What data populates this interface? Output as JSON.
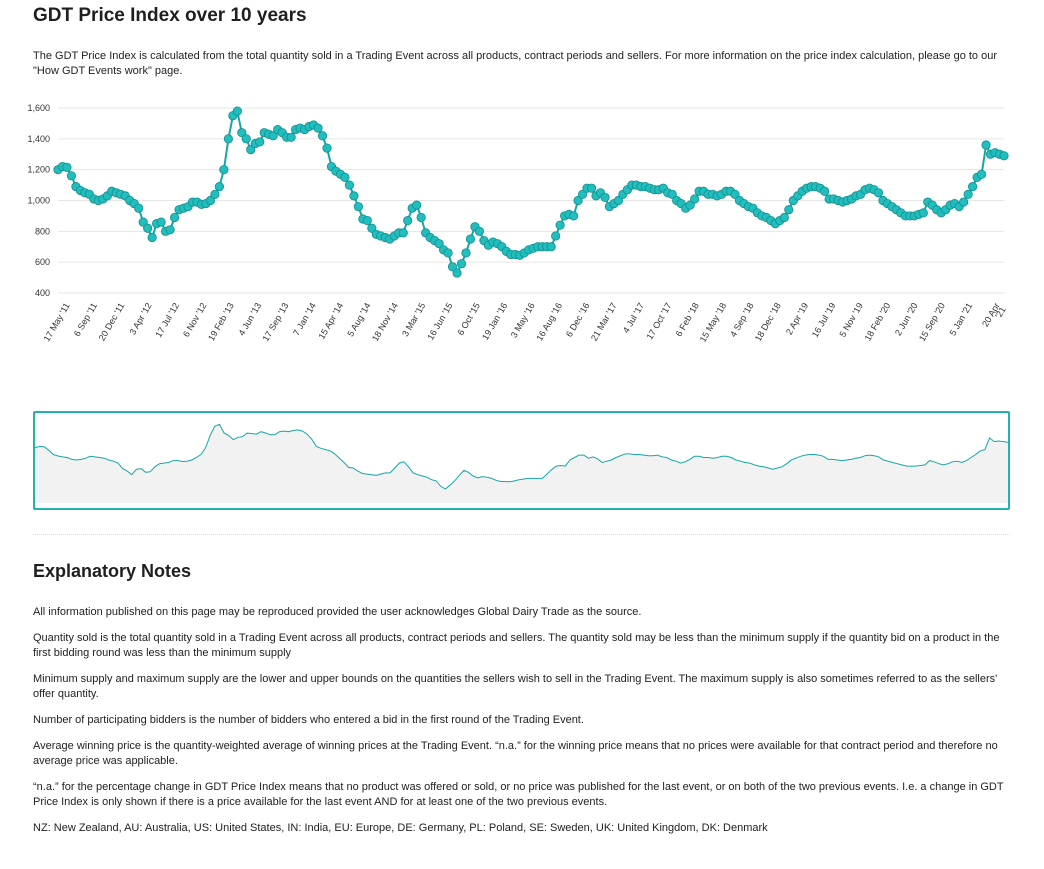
{
  "page": {
    "title": "GDT Price Index over 10 years",
    "intro": "The GDT Price Index is calculated from the total quantity sold in a Trading Event across all products, contract periods and sellers. For more information on the price index calculation, please go to our \"How GDT Events work\" page."
  },
  "chart_data": {
    "type": "line",
    "markers": true,
    "grid": true,
    "ylim": [
      400,
      1600
    ],
    "yticks": [
      "1,600",
      "1,400",
      "1,200",
      "1,000",
      "800",
      "600",
      "400"
    ],
    "yticks_values": [
      1600,
      1400,
      1200,
      1000,
      800,
      600,
      400
    ],
    "xticks": [
      "17 May '11",
      "6 Sep '11",
      "20 Dec '11",
      "3 Apr '12",
      "17 Jul '12",
      "6 Nov '12",
      "19 Feb '13",
      "4 Jun '13",
      "17 Sep '13",
      "7 Jan '14",
      "15 Apr '14",
      "5 Aug '14",
      "18 Nov '14",
      "3 Mar '15",
      "16 Jun '15",
      "6 Oct '15",
      "19 Jan '16",
      "3 May '16",
      "16 Aug '16",
      "6 Dec '16",
      "21 Mar '17",
      "4 Jul '17",
      "17 Oct '17",
      "6 Feb '18",
      "15 May '18",
      "4 Sep '18",
      "18 Dec '18",
      "2 Apr '19",
      "16 Jul '19",
      "5 Nov '19",
      "18 Feb '20",
      "2 Jun '20",
      "15 Sep '20",
      "5 Jan '21",
      "20 Apr '21"
    ],
    "values": [
      1200,
      1220,
      1215,
      1160,
      1090,
      1065,
      1050,
      1040,
      1010,
      1000,
      1010,
      1030,
      1060,
      1050,
      1040,
      1030,
      1000,
      980,
      950,
      860,
      820,
      760,
      850,
      860,
      800,
      810,
      890,
      940,
      950,
      960,
      990,
      990,
      975,
      980,
      1000,
      1040,
      1090,
      1200,
      1400,
      1550,
      1580,
      1440,
      1400,
      1330,
      1370,
      1380,
      1440,
      1430,
      1420,
      1460,
      1440,
      1410,
      1410,
      1460,
      1470,
      1460,
      1480,
      1490,
      1470,
      1420,
      1340,
      1220,
      1190,
      1170,
      1150,
      1100,
      1030,
      960,
      880,
      870,
      820,
      780,
      770,
      760,
      750,
      770,
      790,
      790,
      870,
      950,
      970,
      890,
      790,
      760,
      740,
      720,
      680,
      660,
      570,
      530,
      590,
      660,
      750,
      830,
      800,
      740,
      710,
      730,
      720,
      700,
      670,
      650,
      650,
      645,
      660,
      680,
      690,
      700,
      700,
      700,
      700,
      770,
      840,
      900,
      910,
      900,
      1000,
      1040,
      1080,
      1080,
      1030,
      1050,
      1020,
      960,
      980,
      1000,
      1040,
      1070,
      1100,
      1100,
      1090,
      1090,
      1080,
      1070,
      1070,
      1080,
      1050,
      1040,
      1000,
      980,
      950,
      970,
      1010,
      1060,
      1060,
      1040,
      1040,
      1030,
      1040,
      1060,
      1060,
      1040,
      1000,
      980,
      960,
      950,
      920,
      900,
      890,
      870,
      850,
      870,
      890,
      940,
      1000,
      1030,
      1060,
      1080,
      1090,
      1090,
      1080,
      1060,
      1010,
      1010,
      1000,
      990,
      1000,
      1010,
      1030,
      1040,
      1070,
      1080,
      1070,
      1050,
      1000,
      980,
      960,
      940,
      920,
      900,
      900,
      900,
      910,
      920,
      990,
      970,
      940,
      920,
      940,
      970,
      980,
      960,
      990,
      1040,
      1090,
      1150,
      1170,
      1360,
      1300,
      1310,
      1300,
      1290
    ]
  },
  "navigator": {
    "label": "range-navigator"
  },
  "notes": {
    "title": "Explanatory Notes",
    "items": [
      "All information published on this page may be reproduced provided the user acknowledges Global Dairy Trade as the source.",
      "Quantity sold is the total quantity sold in a Trading Event across all products, contract periods and sellers. The quantity sold may be less than the minimum supply if the quantity bid on a product in the first bidding round was less than the minimum supply",
      "Minimum supply and maximum supply are the lower and upper bounds on the quantities the sellers wish to sell in the Trading Event. The maximum supply is also sometimes referred to as the sellers' offer quantity.",
      "Number of participating bidders is the number of bidders who entered a bid in the first round of the Trading Event.",
      "Average winning price is the quantity-weighted average of winning prices at the Trading Event.  “n.a.” for the winning price means that no prices were available for that contract period and therefore no average price was applicable.",
      "“n.a.” for the percentage change in GDT Price Index means that no product was offered or sold, or no price was published for the last event, or on both of the two previous events.  I.e. a change in GDT Price Index is only shown if there is a price available for the last event AND for at least one of the two previous events.",
      "NZ: New Zealand, AU: Australia, US: United States, IN: India, EU: Europe, DE: Germany, PL: Poland, SE: Sweden, UK: United Kingdom, DK: Denmark"
    ]
  },
  "colors": {
    "line": "#17a6a6",
    "marker_fill": "#22bdbd",
    "marker_stroke": "#128f8f",
    "nav_fill": "#f2f2f2",
    "nav_border": "#1fb3b3",
    "grid": "#e6e6e6"
  }
}
